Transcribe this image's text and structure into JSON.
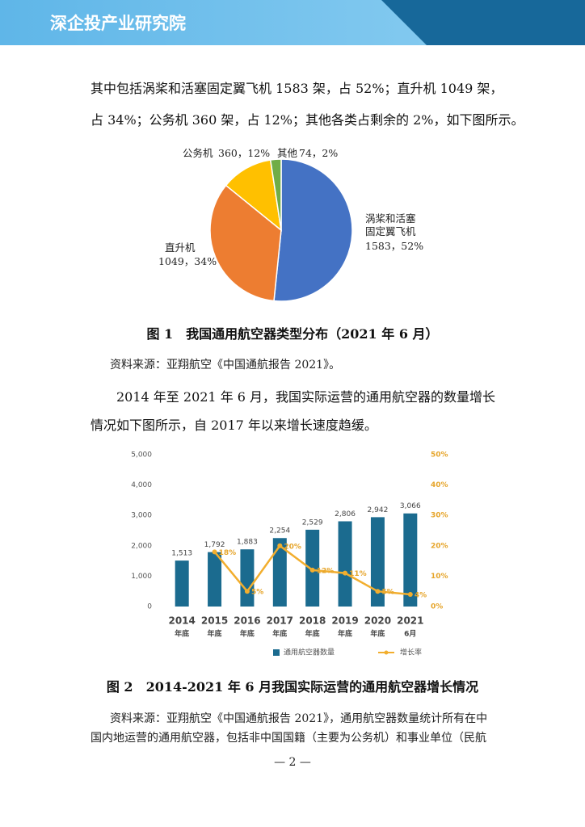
{
  "header": {
    "title": "深企投产业研究院"
  },
  "paragraphs": [
    [
      "其中包括涡桨和活塞固定翼飞机 1583 架，占 52%；直升机 1049 架，",
      "占 34%；公务机 360 架，占 12%；其他各类占剩余的 2%，如下图所示。"
    ],
    [
      "2014 年至 2021 年 6 月，我国实际运营的通用航空器的数量增长",
      "情况如下图所示，自 2017 年以来增长速度趋缓。"
    ]
  ],
  "figures": [
    {
      "caption": "图 1　我国通用航空器类型分布（2021 年 6 月）",
      "source": [
        "资料来源：亚翔航空《中国通航报告 2021》。"
      ]
    },
    {
      "caption": "图 2　2014-2021 年 6 月我国实际运营的通用航空器增长情况",
      "source": [
        "资料来源：亚翔航空《中国通航报告 2021》，通用航空器数量统计所有在中",
        "国内地运营的通用航空器，包括非中国国籍（主要为公务机）和事业单位（民航"
      ]
    }
  ],
  "chart_data": [
    {
      "type": "pie",
      "categories": [
        "涡桨和活塞固定翼飞机",
        "直升机",
        "公务机",
        "其他"
      ],
      "values": [
        1583,
        1049,
        360,
        74
      ],
      "value_labels": [
        "1583，52%",
        "1049，34%",
        "360，12%",
        "74，2%"
      ],
      "colors": [
        "#4472c4",
        "#ed7d31",
        "#ffc000",
        "#70ad47"
      ]
    },
    {
      "type": "bar",
      "categories": [
        "2014",
        "2015",
        "2016",
        "2017",
        "2018",
        "2019",
        "2020",
        "2021"
      ],
      "category_sublabels": [
        "年底",
        "年底",
        "年底",
        "年底",
        "年底",
        "年底",
        "年底",
        "6月"
      ],
      "series": [
        {
          "name": "通用航空器数量",
          "type": "bar",
          "color": "#1b6b8f",
          "values": [
            1513,
            1792,
            1883,
            2254,
            2529,
            2806,
            2942,
            3066
          ],
          "value_labels": [
            "1,513",
            "1,792",
            "1,883",
            "2,254",
            "2,529",
            "2,806",
            "2,942",
            "3,066"
          ]
        },
        {
          "name": "增长率",
          "type": "line",
          "axis": "y2",
          "color": "#f2ae2e",
          "values": [
            null,
            18,
            5,
            20,
            12,
            11,
            5,
            4
          ],
          "value_labels": [
            null,
            "18%",
            "5%",
            "20%",
            "12%",
            "11%",
            "5%",
            "4%"
          ]
        }
      ],
      "ylim": [
        0,
        5000
      ],
      "yticks": [
        0,
        {
          "value": 1000,
          "label": "1,000"
        },
        {
          "value": 2000,
          "label": "2,000"
        },
        {
          "value": 3000,
          "label": "3,000"
        },
        {
          "value": 4000,
          "label": "4,000"
        },
        {
          "value": 5000,
          "label": "5,000"
        }
      ],
      "y2lim": [
        0,
        50
      ],
      "y2ticks": [
        {
          "value": 0,
          "label": "0%"
        },
        {
          "value": 10,
          "label": "10%"
        },
        {
          "value": 20,
          "label": "20%"
        },
        {
          "value": 30,
          "label": "30%"
        },
        {
          "value": 40,
          "label": "40%"
        },
        {
          "value": 50,
          "label": "50%"
        }
      ],
      "grid": false,
      "legend": "bottom"
    }
  ],
  "page_number": "— 2 —"
}
